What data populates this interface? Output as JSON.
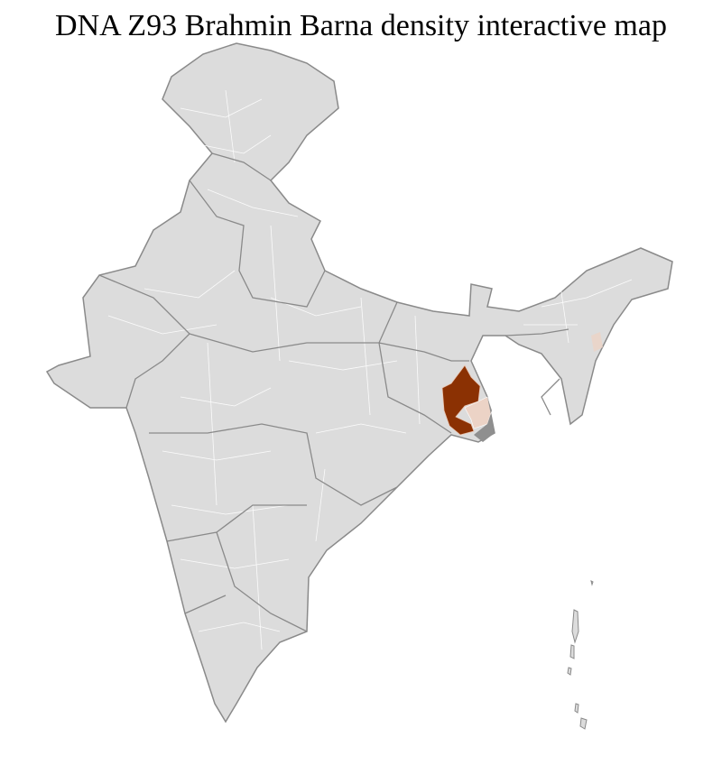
{
  "title": "DNA Z93 Brahmin Barna density interactive map",
  "map": {
    "region": "India districts",
    "colors": {
      "base_fill": "#dcdcdc",
      "district_border": "#ffffff",
      "state_border": "#8a8a8a",
      "high_density": "#8b3103",
      "low_density": "#ecd3c6",
      "no_data": "#8f8f8f"
    }
  }
}
